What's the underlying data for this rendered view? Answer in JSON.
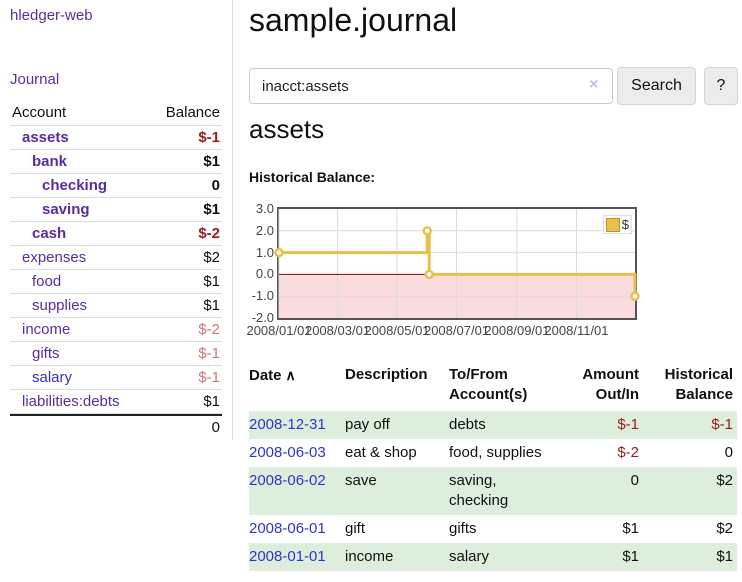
{
  "app": {
    "brand": "hledger-web"
  },
  "sidebar": {
    "journal_link": "Journal",
    "account_header": "Account",
    "balance_header": "Balance",
    "accounts": [
      {
        "name": "assets",
        "balance": "$-1"
      },
      {
        "name": "bank",
        "balance": "$1"
      },
      {
        "name": "checking",
        "balance": "0"
      },
      {
        "name": "saving",
        "balance": "$1"
      },
      {
        "name": "cash",
        "balance": "$-2"
      },
      {
        "name": "expenses",
        "balance": "$2"
      },
      {
        "name": "food",
        "balance": "$1"
      },
      {
        "name": "supplies",
        "balance": "$1"
      },
      {
        "name": "income",
        "balance": "$-2"
      },
      {
        "name": "gifts",
        "balance": "$-1"
      },
      {
        "name": "salary",
        "balance": "$-1"
      },
      {
        "name": "liabilities:debts",
        "balance": "$1"
      }
    ],
    "total_balance": "0"
  },
  "header": {
    "title": "sample.journal"
  },
  "search": {
    "value": "inacct:assets",
    "clear_icon": "×",
    "search_button": "Search",
    "help_button": "?"
  },
  "account_page": {
    "heading": "assets",
    "chart_title": "Historical Balance:"
  },
  "chart_data": {
    "type": "line",
    "step": "after",
    "title": "Historical Balance",
    "x_range": [
      "2008-01-01",
      "2008-12-31"
    ],
    "ylim": [
      -2,
      3
    ],
    "grid": true,
    "x_tick_labels": [
      "2008/01/01",
      "2008/03/01",
      "2008/05/01",
      "2008/07/01",
      "2008/09/01",
      "2008/11/01"
    ],
    "y_tick_labels": [
      "3.0",
      "2.0",
      "1.0",
      "0.0",
      "-1.0",
      "-2.0"
    ],
    "y_tick_values": [
      3,
      2,
      1,
      0,
      -1,
      -2
    ],
    "legend": {
      "label": "$",
      "position": "top-right"
    },
    "series": [
      {
        "name": "$",
        "color": "#e7bf4d",
        "points": [
          [
            "2008-01-01",
            1
          ],
          [
            "2008-06-01",
            2
          ],
          [
            "2008-06-03",
            0
          ],
          [
            "2008-12-31",
            -1
          ]
        ]
      }
    ],
    "negative_region_fill": "#fbdcdc",
    "zero_line_color": "#8b0000",
    "gridline_color": "#dcdcdc"
  },
  "transactions": {
    "headers": {
      "date": "Date",
      "description": "Description",
      "accounts": "To/From Account(s)",
      "amount": "Amount Out/In",
      "balance": "Historical Balance"
    },
    "sort_icon": "∧",
    "rows": [
      {
        "date": "2008-12-31",
        "description": "pay off",
        "accounts": "debts",
        "amount": "$-1",
        "balance": "$-1"
      },
      {
        "date": "2008-06-03",
        "description": "eat & shop",
        "accounts": "food, supplies",
        "amount": "$-2",
        "balance": "0"
      },
      {
        "date": "2008-06-02",
        "description": "save",
        "accounts": "saving, checking",
        "amount": "0",
        "balance": "$2"
      },
      {
        "date": "2008-06-01",
        "description": "gift",
        "accounts": "gifts",
        "amount": "$1",
        "balance": "$2"
      },
      {
        "date": "2008-01-01",
        "description": "income",
        "accounts": "salary",
        "amount": "$1",
        "balance": "$1"
      }
    ]
  },
  "colors": {
    "accent_purple": "#5a2ca0",
    "link_blue": "#3333cc",
    "negative_strong": "#9e1a1a",
    "negative_soft": "#c17a7a",
    "row_stripe_green": "#ddeedd",
    "chart_gold": "#e7bf4d",
    "chart_negative_pink": "#fbdcdc",
    "zero_line_red": "#8b0000"
  }
}
